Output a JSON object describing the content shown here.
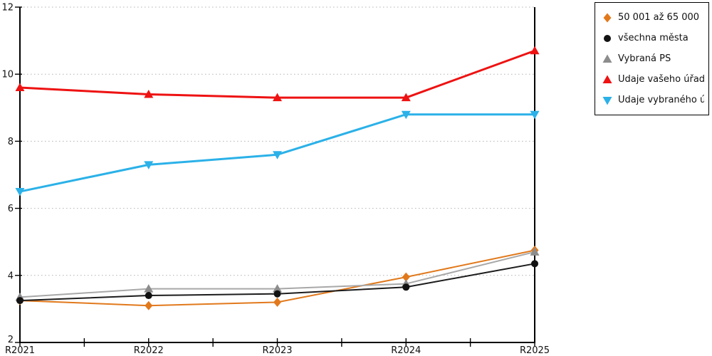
{
  "chart_data": {
    "type": "line",
    "title": "",
    "xlabel": "",
    "ylabel": "",
    "categories": [
      "R2021",
      "R2022",
      "R2023",
      "R2024",
      "R2025"
    ],
    "series": [
      {
        "name": "50 001 až 65 000",
        "marker": "diamond",
        "color": "#E1791C",
        "line_color": "#E1791C",
        "line_width": 2,
        "values": [
          3.25,
          3.1,
          3.2,
          3.95,
          4.75
        ]
      },
      {
        "name": "všechna města",
        "marker": "circle",
        "color": "#121212",
        "line_color": "#1c1c1c",
        "line_width": 2,
        "values": [
          3.25,
          3.4,
          3.45,
          3.65,
          4.35
        ]
      },
      {
        "name": "Vybraná PS",
        "marker": "triangle-up",
        "color": "#8C8C8C",
        "line_color": "#A8A8A8",
        "line_width": 2,
        "values": [
          3.35,
          3.6,
          3.6,
          3.75,
          4.7
        ]
      },
      {
        "name": "Údaje vašeho úřadu",
        "marker": "triangle-up",
        "color": "#EE1212",
        "line_color": "#EE1212",
        "line_width": 3,
        "values": [
          9.6,
          9.4,
          9.3,
          9.3,
          10.7
        ]
      },
      {
        "name": "Údaje vybraného úřadu",
        "marker": "triangle-down",
        "color": "#2BB1E8",
        "line_color": "#2BB1E8",
        "line_width": 3,
        "values": [
          6.5,
          7.3,
          7.6,
          8.8,
          8.8
        ]
      }
    ],
    "draw_order": [
      0,
      2,
      1,
      3,
      4
    ],
    "ylim": [
      2,
      12
    ],
    "yticks": [
      2,
      4,
      6,
      8,
      10,
      12
    ],
    "grid": true,
    "grid_style": "dotted",
    "grid_color": "#b2b2b2",
    "axis_color": "#000000",
    "legend_position": "outside-top-right",
    "legend_border_color": "#000000"
  }
}
